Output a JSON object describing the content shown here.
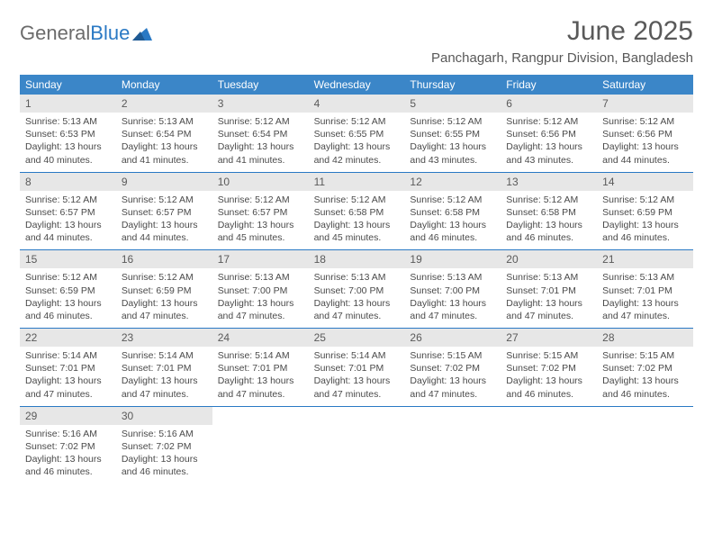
{
  "logo": {
    "text1": "General",
    "text2": "Blue"
  },
  "title": "June 2025",
  "location": "Panchagarh, Rangpur Division, Bangladesh",
  "colors": {
    "header_bg": "#3b86c8",
    "row_border": "#2a79c4",
    "daynum_bg": "#e7e7e7",
    "text_gray": "#595959",
    "logo_gray": "#6b6b6b",
    "logo_blue": "#2a79c4"
  },
  "weekdays": [
    "Sunday",
    "Monday",
    "Tuesday",
    "Wednesday",
    "Thursday",
    "Friday",
    "Saturday"
  ],
  "days": [
    {
      "n": "1",
      "sunrise": "5:13 AM",
      "sunset": "6:53 PM",
      "daylight": "13 hours and 40 minutes."
    },
    {
      "n": "2",
      "sunrise": "5:13 AM",
      "sunset": "6:54 PM",
      "daylight": "13 hours and 41 minutes."
    },
    {
      "n": "3",
      "sunrise": "5:12 AM",
      "sunset": "6:54 PM",
      "daylight": "13 hours and 41 minutes."
    },
    {
      "n": "4",
      "sunrise": "5:12 AM",
      "sunset": "6:55 PM",
      "daylight": "13 hours and 42 minutes."
    },
    {
      "n": "5",
      "sunrise": "5:12 AM",
      "sunset": "6:55 PM",
      "daylight": "13 hours and 43 minutes."
    },
    {
      "n": "6",
      "sunrise": "5:12 AM",
      "sunset": "6:56 PM",
      "daylight": "13 hours and 43 minutes."
    },
    {
      "n": "7",
      "sunrise": "5:12 AM",
      "sunset": "6:56 PM",
      "daylight": "13 hours and 44 minutes."
    },
    {
      "n": "8",
      "sunrise": "5:12 AM",
      "sunset": "6:57 PM",
      "daylight": "13 hours and 44 minutes."
    },
    {
      "n": "9",
      "sunrise": "5:12 AM",
      "sunset": "6:57 PM",
      "daylight": "13 hours and 44 minutes."
    },
    {
      "n": "10",
      "sunrise": "5:12 AM",
      "sunset": "6:57 PM",
      "daylight": "13 hours and 45 minutes."
    },
    {
      "n": "11",
      "sunrise": "5:12 AM",
      "sunset": "6:58 PM",
      "daylight": "13 hours and 45 minutes."
    },
    {
      "n": "12",
      "sunrise": "5:12 AM",
      "sunset": "6:58 PM",
      "daylight": "13 hours and 46 minutes."
    },
    {
      "n": "13",
      "sunrise": "5:12 AM",
      "sunset": "6:58 PM",
      "daylight": "13 hours and 46 minutes."
    },
    {
      "n": "14",
      "sunrise": "5:12 AM",
      "sunset": "6:59 PM",
      "daylight": "13 hours and 46 minutes."
    },
    {
      "n": "15",
      "sunrise": "5:12 AM",
      "sunset": "6:59 PM",
      "daylight": "13 hours and 46 minutes."
    },
    {
      "n": "16",
      "sunrise": "5:12 AM",
      "sunset": "6:59 PM",
      "daylight": "13 hours and 47 minutes."
    },
    {
      "n": "17",
      "sunrise": "5:13 AM",
      "sunset": "7:00 PM",
      "daylight": "13 hours and 47 minutes."
    },
    {
      "n": "18",
      "sunrise": "5:13 AM",
      "sunset": "7:00 PM",
      "daylight": "13 hours and 47 minutes."
    },
    {
      "n": "19",
      "sunrise": "5:13 AM",
      "sunset": "7:00 PM",
      "daylight": "13 hours and 47 minutes."
    },
    {
      "n": "20",
      "sunrise": "5:13 AM",
      "sunset": "7:01 PM",
      "daylight": "13 hours and 47 minutes."
    },
    {
      "n": "21",
      "sunrise": "5:13 AM",
      "sunset": "7:01 PM",
      "daylight": "13 hours and 47 minutes."
    },
    {
      "n": "22",
      "sunrise": "5:14 AM",
      "sunset": "7:01 PM",
      "daylight": "13 hours and 47 minutes."
    },
    {
      "n": "23",
      "sunrise": "5:14 AM",
      "sunset": "7:01 PM",
      "daylight": "13 hours and 47 minutes."
    },
    {
      "n": "24",
      "sunrise": "5:14 AM",
      "sunset": "7:01 PM",
      "daylight": "13 hours and 47 minutes."
    },
    {
      "n": "25",
      "sunrise": "5:14 AM",
      "sunset": "7:01 PM",
      "daylight": "13 hours and 47 minutes."
    },
    {
      "n": "26",
      "sunrise": "5:15 AM",
      "sunset": "7:02 PM",
      "daylight": "13 hours and 47 minutes."
    },
    {
      "n": "27",
      "sunrise": "5:15 AM",
      "sunset": "7:02 PM",
      "daylight": "13 hours and 46 minutes."
    },
    {
      "n": "28",
      "sunrise": "5:15 AM",
      "sunset": "7:02 PM",
      "daylight": "13 hours and 46 minutes."
    },
    {
      "n": "29",
      "sunrise": "5:16 AM",
      "sunset": "7:02 PM",
      "daylight": "13 hours and 46 minutes."
    },
    {
      "n": "30",
      "sunrise": "5:16 AM",
      "sunset": "7:02 PM",
      "daylight": "13 hours and 46 minutes."
    }
  ],
  "labels": {
    "sunrise": "Sunrise:",
    "sunset": "Sunset:",
    "daylight": "Daylight:"
  }
}
